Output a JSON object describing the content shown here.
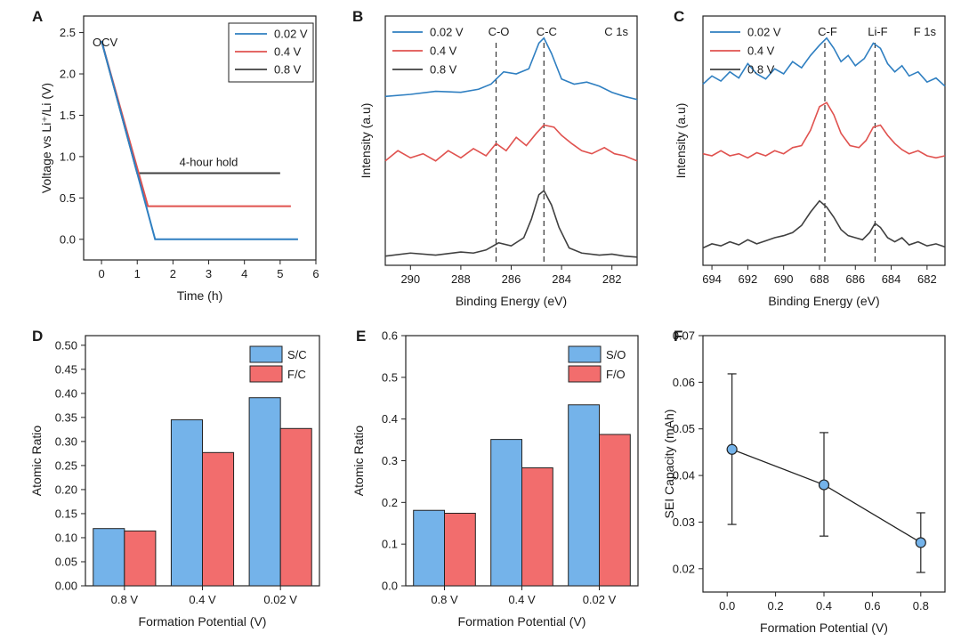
{
  "colors": {
    "blue": "#2f7fc1",
    "red": "#e0524f",
    "gray": "#404040",
    "bar_blue": "#74b3ea",
    "bar_red": "#f26d6d",
    "point": "#74b3ea"
  },
  "chart_data": [
    {
      "panel": "A",
      "type": "line",
      "xlabel": "Time (h)",
      "ylabel": "Voltage vs Li⁺/Li (V)",
      "xlim": [
        -0.5,
        6
      ],
      "ylim": [
        -0.25,
        2.7
      ],
      "xticks": [
        "0",
        "1",
        "2",
        "3",
        "4",
        "5",
        "6"
      ],
      "yticks": [
        "0.0",
        "0.5",
        "1.0",
        "1.5",
        "2.0",
        "2.5"
      ],
      "annotations": [
        "OCV",
        "4-hour hold"
      ],
      "legend_position": "top-right",
      "series": [
        {
          "name": "0.02 V",
          "color": "blue",
          "points": [
            [
              0,
              2.4
            ],
            [
              1.5,
              0.0
            ],
            [
              5.5,
              0.0
            ]
          ]
        },
        {
          "name": "0.4 V",
          "color": "red",
          "points": [
            [
              0,
              2.4
            ],
            [
              1.3,
              0.4
            ],
            [
              5.3,
              0.4
            ]
          ]
        },
        {
          "name": "0.8 V",
          "color": "gray",
          "points": [
            [
              0,
              2.4
            ],
            [
              1.0,
              0.8
            ],
            [
              5.0,
              0.8
            ]
          ]
        }
      ]
    },
    {
      "panel": "B",
      "type": "line",
      "title": "C 1s",
      "xlabel": "Binding Energy (eV)",
      "ylabel": "Intensity (a.u)",
      "xlim": [
        291,
        281
      ],
      "xticks": [
        "290",
        "288",
        "286",
        "284",
        "282"
      ],
      "peak_labels": [
        {
          "label": "C-O",
          "x": 286.6
        },
        {
          "label": "C-C",
          "x": 284.7
        }
      ],
      "legend_position": "top-left",
      "series": [
        {
          "name": "0.02 V",
          "color": "blue",
          "points": [
            [
              291,
              1.58
            ],
            [
              290,
              1.6
            ],
            [
              289,
              1.63
            ],
            [
              288,
              1.62
            ],
            [
              287.3,
              1.65
            ],
            [
              286.8,
              1.7
            ],
            [
              286.3,
              1.82
            ],
            [
              285.8,
              1.8
            ],
            [
              285.3,
              1.85
            ],
            [
              284.9,
              2.1
            ],
            [
              284.7,
              2.15
            ],
            [
              284.4,
              2.0
            ],
            [
              284,
              1.75
            ],
            [
              283.5,
              1.7
            ],
            [
              283,
              1.72
            ],
            [
              282.5,
              1.68
            ],
            [
              282,
              1.62
            ],
            [
              281.5,
              1.58
            ],
            [
              281,
              1.55
            ]
          ]
        },
        {
          "name": "0.4 V",
          "color": "red",
          "points": [
            [
              291,
              0.95
            ],
            [
              290.5,
              1.05
            ],
            [
              290,
              0.98
            ],
            [
              289.5,
              1.02
            ],
            [
              289,
              0.95
            ],
            [
              288.5,
              1.05
            ],
            [
              288,
              0.98
            ],
            [
              287.5,
              1.07
            ],
            [
              287,
              1.0
            ],
            [
              286.6,
              1.12
            ],
            [
              286.2,
              1.05
            ],
            [
              285.8,
              1.18
            ],
            [
              285.4,
              1.1
            ],
            [
              285,
              1.22
            ],
            [
              284.7,
              1.3
            ],
            [
              284.3,
              1.28
            ],
            [
              284,
              1.2
            ],
            [
              283.6,
              1.12
            ],
            [
              283.2,
              1.05
            ],
            [
              282.8,
              1.02
            ],
            [
              282.3,
              1.08
            ],
            [
              281.9,
              1.02
            ],
            [
              281.5,
              1.0
            ],
            [
              281,
              0.95
            ]
          ]
        },
        {
          "name": "0.8 V",
          "color": "gray",
          "points": [
            [
              291,
              0.02
            ],
            [
              290,
              0.05
            ],
            [
              289,
              0.03
            ],
            [
              288,
              0.06
            ],
            [
              287.5,
              0.05
            ],
            [
              287,
              0.08
            ],
            [
              286.5,
              0.15
            ],
            [
              286,
              0.12
            ],
            [
              285.5,
              0.2
            ],
            [
              285.2,
              0.38
            ],
            [
              284.9,
              0.62
            ],
            [
              284.7,
              0.66
            ],
            [
              284.4,
              0.52
            ],
            [
              284.1,
              0.3
            ],
            [
              283.7,
              0.1
            ],
            [
              283.2,
              0.05
            ],
            [
              282.5,
              0.03
            ],
            [
              282,
              0.04
            ],
            [
              281.5,
              0.02
            ],
            [
              281,
              0.01
            ]
          ]
        }
      ]
    },
    {
      "panel": "C",
      "type": "line",
      "title": "F 1s",
      "xlabel": "Binding Energy (eV)",
      "ylabel": "Intensity (a.u)",
      "xlim": [
        694.5,
        681
      ],
      "xticks": [
        "694",
        "692",
        "690",
        "688",
        "686",
        "684",
        "682"
      ],
      "peak_labels": [
        {
          "label": "C-F",
          "x": 687.7
        },
        {
          "label": "Li-F",
          "x": 684.9
        }
      ],
      "legend_position": "top-left",
      "series": [
        {
          "name": "0.02 V",
          "color": "blue",
          "points": [
            [
              694.5,
              1.7
            ],
            [
              694,
              1.78
            ],
            [
              693.5,
              1.73
            ],
            [
              693,
              1.82
            ],
            [
              692.5,
              1.76
            ],
            [
              692,
              1.9
            ],
            [
              691.5,
              1.8
            ],
            [
              691,
              1.75
            ],
            [
              690.5,
              1.85
            ],
            [
              690,
              1.8
            ],
            [
              689.5,
              1.92
            ],
            [
              689,
              1.86
            ],
            [
              688.5,
              1.98
            ],
            [
              688,
              2.08
            ],
            [
              687.6,
              2.15
            ],
            [
              687.2,
              2.05
            ],
            [
              686.8,
              1.92
            ],
            [
              686.4,
              1.98
            ],
            [
              686,
              1.88
            ],
            [
              685.5,
              1.95
            ],
            [
              685,
              2.1
            ],
            [
              684.6,
              2.05
            ],
            [
              684.2,
              1.9
            ],
            [
              683.8,
              1.82
            ],
            [
              683.4,
              1.88
            ],
            [
              683,
              1.78
            ],
            [
              682.5,
              1.82
            ],
            [
              682,
              1.72
            ],
            [
              681.5,
              1.76
            ],
            [
              681,
              1.68
            ]
          ]
        },
        {
          "name": "0.4 V",
          "color": "red",
          "points": [
            [
              694.5,
              1.02
            ],
            [
              694,
              1.0
            ],
            [
              693.5,
              1.05
            ],
            [
              693,
              1.0
            ],
            [
              692.5,
              1.02
            ],
            [
              692,
              0.98
            ],
            [
              691.5,
              1.03
            ],
            [
              691,
              1.0
            ],
            [
              690.5,
              1.05
            ],
            [
              690,
              1.02
            ],
            [
              689.5,
              1.08
            ],
            [
              689,
              1.1
            ],
            [
              688.5,
              1.25
            ],
            [
              688,
              1.48
            ],
            [
              687.6,
              1.52
            ],
            [
              687.2,
              1.4
            ],
            [
              686.8,
              1.22
            ],
            [
              686.3,
              1.1
            ],
            [
              685.8,
              1.08
            ],
            [
              685.4,
              1.15
            ],
            [
              685,
              1.28
            ],
            [
              684.6,
              1.3
            ],
            [
              684.2,
              1.2
            ],
            [
              683.8,
              1.12
            ],
            [
              683.4,
              1.06
            ],
            [
              683,
              1.02
            ],
            [
              682.5,
              1.05
            ],
            [
              682,
              1.0
            ],
            [
              681.5,
              0.98
            ],
            [
              681,
              1.0
            ]
          ]
        },
        {
          "name": "0.8 V",
          "color": "gray",
          "points": [
            [
              694.5,
              0.1
            ],
            [
              694,
              0.14
            ],
            [
              693.5,
              0.12
            ],
            [
              693,
              0.16
            ],
            [
              692.5,
              0.13
            ],
            [
              692,
              0.18
            ],
            [
              691.5,
              0.14
            ],
            [
              691,
              0.17
            ],
            [
              690.5,
              0.2
            ],
            [
              690,
              0.22
            ],
            [
              689.5,
              0.25
            ],
            [
              689,
              0.32
            ],
            [
              688.5,
              0.45
            ],
            [
              688,
              0.56
            ],
            [
              687.6,
              0.5
            ],
            [
              687.2,
              0.4
            ],
            [
              686.8,
              0.28
            ],
            [
              686.4,
              0.22
            ],
            [
              686,
              0.2
            ],
            [
              685.6,
              0.18
            ],
            [
              685.2,
              0.25
            ],
            [
              684.9,
              0.34
            ],
            [
              684.6,
              0.3
            ],
            [
              684.2,
              0.2
            ],
            [
              683.8,
              0.16
            ],
            [
              683.4,
              0.2
            ],
            [
              683,
              0.13
            ],
            [
              682.5,
              0.16
            ],
            [
              682,
              0.12
            ],
            [
              681.5,
              0.14
            ],
            [
              681,
              0.11
            ]
          ]
        }
      ]
    },
    {
      "panel": "D",
      "type": "bar",
      "xlabel": "Formation Potential (V)",
      "ylabel": "Atomic Ratio",
      "ylim": [
        0,
        0.52
      ],
      "yticks": [
        "0.00",
        "0.05",
        "0.10",
        "0.15",
        "0.20",
        "0.25",
        "0.30",
        "0.35",
        "0.40",
        "0.45",
        "0.50"
      ],
      "categories": [
        "0.8 V",
        "0.4 V",
        "0.02 V"
      ],
      "legend_position": "top-right",
      "series": [
        {
          "name": "S/C",
          "color": "bar_blue",
          "values": [
            0.119,
            0.345,
            0.391
          ]
        },
        {
          "name": "F/C",
          "color": "bar_red",
          "values": [
            0.114,
            0.277,
            0.327
          ]
        }
      ]
    },
    {
      "panel": "E",
      "type": "bar",
      "xlabel": "Formation Potential (V)",
      "ylabel": "Atomic Ratio",
      "ylim": [
        0,
        0.6
      ],
      "yticks": [
        "0.0",
        "0.1",
        "0.2",
        "0.3",
        "0.4",
        "0.5",
        "0.6"
      ],
      "categories": [
        "0.8 V",
        "0.4 V",
        "0.02 V"
      ],
      "legend_position": "top-right",
      "series": [
        {
          "name": "S/O",
          "color": "bar_blue",
          "values": [
            0.181,
            0.351,
            0.434
          ]
        },
        {
          "name": "F/O",
          "color": "bar_red",
          "values": [
            0.174,
            0.283,
            0.363
          ]
        }
      ]
    },
    {
      "panel": "F",
      "type": "scatter",
      "xlabel": "Formation Potential (V)",
      "ylabel": "SEI Capacity (mAh)",
      "xlim": [
        -0.1,
        0.9
      ],
      "ylim": [
        0.015,
        0.07
      ],
      "xticks": [
        "0.0",
        "0.2",
        "0.4",
        "0.6",
        "0.8"
      ],
      "yticks": [
        "0.02",
        "0.03",
        "0.04",
        "0.05",
        "0.06",
        "0.07"
      ],
      "points": [
        {
          "x": 0.02,
          "y": 0.0456,
          "err_low": 0.0295,
          "err_high": 0.0618
        },
        {
          "x": 0.4,
          "y": 0.038,
          "err_low": 0.027,
          "err_high": 0.0492
        },
        {
          "x": 0.8,
          "y": 0.0256,
          "err_low": 0.0192,
          "err_high": 0.032
        }
      ]
    }
  ]
}
